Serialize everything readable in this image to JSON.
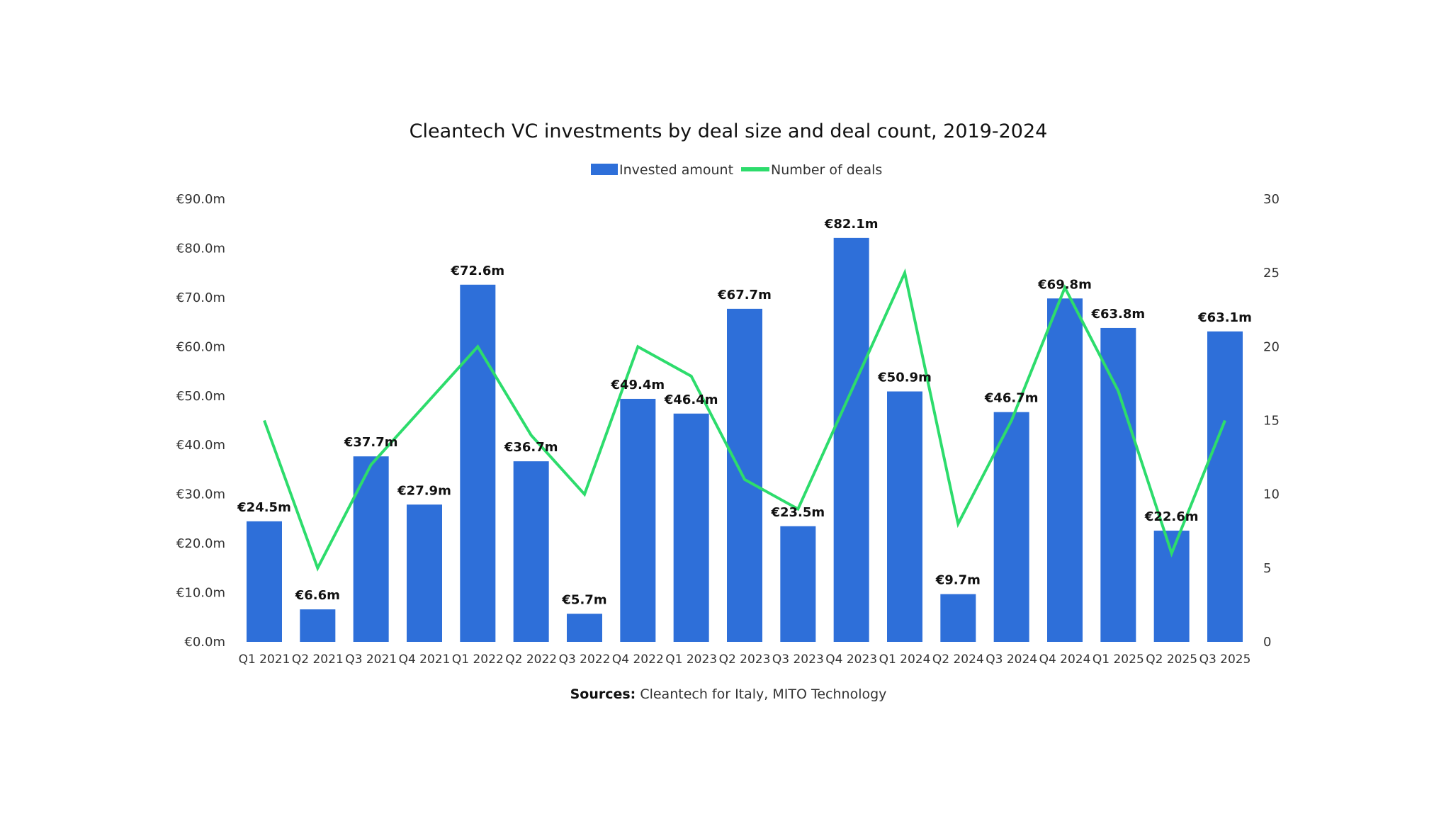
{
  "chart_data": {
    "type": "bar+line",
    "title": "Cleantech VC investments by deal size and deal count, 2019-2024",
    "categories": [
      "Q1 2021",
      "Q2 2021",
      "Q3 2021",
      "Q4 2021",
      "Q1 2022",
      "Q2 2022",
      "Q3 2022",
      "Q4 2022",
      "Q1 2023",
      "Q2 2023",
      "Q3 2023",
      "Q4 2023",
      "Q1 2024",
      "Q2 2024",
      "Q3 2024",
      "Q4 2024",
      "Q1 2025",
      "Q2 2025",
      "Q3 2025"
    ],
    "series": [
      {
        "name": "Invested amount",
        "type": "bar",
        "axis": "left",
        "color": "#2e6fd9",
        "values": [
          24.5,
          6.6,
          37.7,
          27.9,
          72.6,
          36.7,
          5.7,
          49.4,
          46.4,
          67.7,
          23.5,
          82.1,
          50.9,
          9.7,
          46.7,
          69.8,
          63.8,
          22.6,
          63.1
        ],
        "labels": [
          "€24.5m",
          "€6.6m",
          "€37.7m",
          "€27.9m",
          "€72.6m",
          "€36.7m",
          "€5.7m",
          "€49.4m",
          "€46.4m",
          "€67.7m",
          "€23.5m",
          "€82.1m",
          "€50.9m",
          "€9.7m",
          "€46.7m",
          "€69.8m",
          "€63.8m",
          "€22.6m",
          "€63.1m"
        ]
      },
      {
        "name": "Number of deals",
        "type": "line",
        "axis": "right",
        "color": "#2ddc6c",
        "values": [
          15,
          5,
          12,
          16,
          20,
          14,
          10,
          20,
          18,
          11,
          9,
          17,
          25,
          8,
          15,
          24,
          17,
          6,
          15
        ]
      }
    ],
    "y_left": {
      "range": [
        0,
        90
      ],
      "ticks": [
        "€0.0m",
        "€10.0m",
        "€20.0m",
        "€30.0m",
        "€40.0m",
        "€50.0m",
        "€60.0m",
        "€70.0m",
        "€80.0m",
        "€90.0m"
      ]
    },
    "y_right": {
      "range": [
        0,
        30
      ],
      "ticks": [
        "0",
        "5",
        "10",
        "15",
        "20",
        "25",
        "30"
      ]
    },
    "grid": false,
    "legend_position": "top-center",
    "source_label": "Sources:",
    "source_text": " Cleantech for Italy, MITO Technology"
  }
}
